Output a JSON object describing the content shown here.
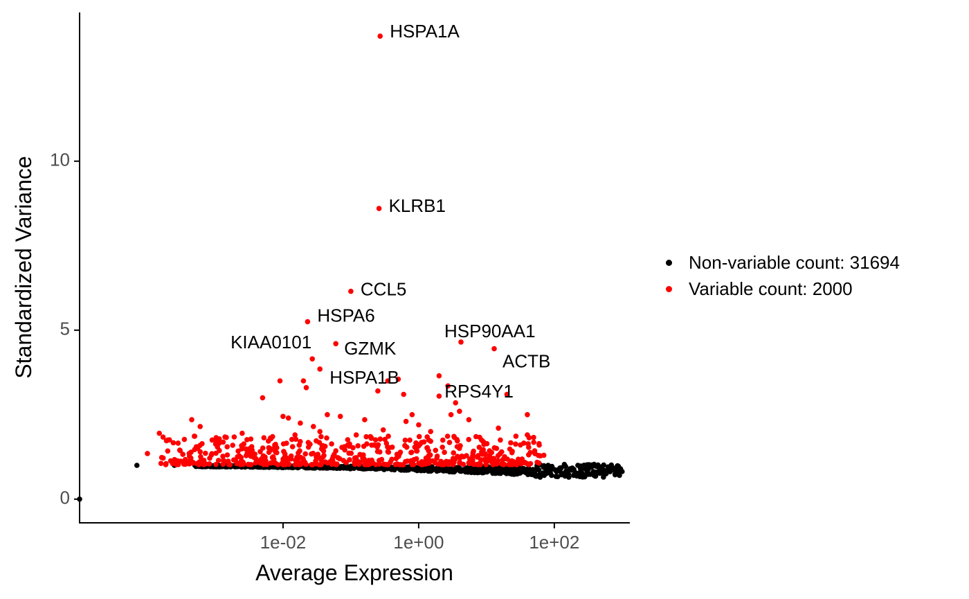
{
  "chart_data": {
    "type": "scatter",
    "xlabel": "Average Expression",
    "ylabel": "Standardized Variance",
    "xscale": "log10",
    "xlim": [
      1e-05,
      1300
    ],
    "ylim": [
      -0.7,
      14.4
    ],
    "x_ticks": [
      {
        "value": 0.01,
        "label": "1e-02"
      },
      {
        "value": 1,
        "label": "1e+00"
      },
      {
        "value": 100,
        "label": "1e+02"
      }
    ],
    "y_ticks": [
      {
        "value": 0,
        "label": "0"
      },
      {
        "value": 5,
        "label": "5"
      },
      {
        "value": 10,
        "label": "10"
      }
    ],
    "legend_position": "right",
    "colors": {
      "nonvariable": "#000000",
      "variable": "#ff0000",
      "axis": "#000000",
      "tick_text": "#4d4d4d"
    },
    "series": [
      {
        "name": "Non-variable count: 31694",
        "color": "#000000"
      },
      {
        "name": "Variable count: 2000",
        "color": "#ff0000"
      }
    ],
    "labeled_genes": [
      {
        "gene": "HSPA1A",
        "x": 0.27,
        "y": 13.7
      },
      {
        "gene": "KLRB1",
        "x": 0.26,
        "y": 8.6
      },
      {
        "gene": "CCL5",
        "x": 0.1,
        "y": 6.15
      },
      {
        "gene": "HSPA6",
        "x": 0.023,
        "y": 5.25
      },
      {
        "gene": "KIAA0101",
        "x": 0.027,
        "y": 4.15
      },
      {
        "gene": "GZMK",
        "x": 0.06,
        "y": 4.6
      },
      {
        "gene": "HSPA1B",
        "x": 0.035,
        "y": 3.85
      },
      {
        "gene": "HSP90AA1",
        "x": 4.2,
        "y": 4.65
      },
      {
        "gene": "ACTB",
        "x": 13,
        "y": 4.45
      },
      {
        "gene": "RPS4Y1",
        "x": 2.7,
        "y": 3.35
      }
    ],
    "extra_variable_points": [
      {
        "x": 0.0001,
        "y": 1.35
      },
      {
        "x": 0.00015,
        "y": 1.95
      },
      {
        "x": 0.0002,
        "y": 1.75
      },
      {
        "x": 0.0003,
        "y": 1.45
      },
      {
        "x": 0.00045,
        "y": 2.35
      },
      {
        "x": 0.0006,
        "y": 2.15
      },
      {
        "x": 0.0009,
        "y": 1.75
      },
      {
        "x": 0.0015,
        "y": 1.55
      },
      {
        "x": 0.0025,
        "y": 1.95
      },
      {
        "x": 0.0035,
        "y": 1.45
      },
      {
        "x": 0.005,
        "y": 3.0
      },
      {
        "x": 0.007,
        "y": 1.85
      },
      {
        "x": 0.009,
        "y": 3.5
      },
      {
        "x": 0.01,
        "y": 2.45
      },
      {
        "x": 0.012,
        "y": 2.4
      },
      {
        "x": 0.015,
        "y": 1.9
      },
      {
        "x": 0.018,
        "y": 2.25
      },
      {
        "x": 0.02,
        "y": 3.5
      },
      {
        "x": 0.022,
        "y": 3.3
      },
      {
        "x": 0.028,
        "y": 2.15
      },
      {
        "x": 0.035,
        "y": 2.0
      },
      {
        "x": 0.045,
        "y": 2.5
      },
      {
        "x": 0.07,
        "y": 2.45
      },
      {
        "x": 0.09,
        "y": 1.6
      },
      {
        "x": 0.12,
        "y": 1.9
      },
      {
        "x": 0.16,
        "y": 2.35
      },
      {
        "x": 0.2,
        "y": 1.8
      },
      {
        "x": 0.25,
        "y": 3.2
      },
      {
        "x": 0.3,
        "y": 2.05
      },
      {
        "x": 0.35,
        "y": 3.5
      },
      {
        "x": 0.5,
        "y": 3.55
      },
      {
        "x": 0.6,
        "y": 3.1
      },
      {
        "x": 0.65,
        "y": 2.3
      },
      {
        "x": 0.8,
        "y": 2.5
      },
      {
        "x": 1.0,
        "y": 2.2
      },
      {
        "x": 1.5,
        "y": 2.0
      },
      {
        "x": 2.0,
        "y": 3.65
      },
      {
        "x": 2.0,
        "y": 3.05
      },
      {
        "x": 3.0,
        "y": 2.5
      },
      {
        "x": 3.5,
        "y": 2.85
      },
      {
        "x": 4.0,
        "y": 2.6
      },
      {
        "x": 5.5,
        "y": 2.35
      },
      {
        "x": 7.0,
        "y": 1.85
      },
      {
        "x": 9.0,
        "y": 1.7
      },
      {
        "x": 15.0,
        "y": 2.1
      },
      {
        "x": 16.0,
        "y": 1.75
      },
      {
        "x": 20.0,
        "y": 3.1
      },
      {
        "x": 40.0,
        "y": 2.5
      },
      {
        "x": 40.0,
        "y": 1.9
      },
      {
        "x": 60.0,
        "y": 1.6
      },
      {
        "x": 70.0,
        "y": 1.3
      }
    ]
  }
}
